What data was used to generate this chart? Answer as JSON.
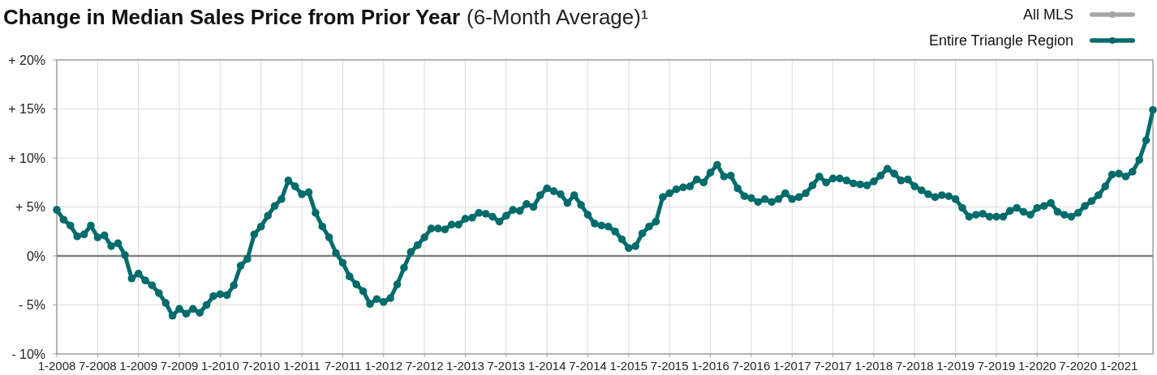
{
  "chart_data": {
    "type": "line",
    "title": "Change in Median Sales Price from Prior Year",
    "subtitle": "(6-Month Average)¹",
    "x": [
      "2008-01",
      "2008-02",
      "2008-03",
      "2008-04",
      "2008-05",
      "2008-06",
      "2008-07",
      "2008-08",
      "2008-09",
      "2008-10",
      "2008-11",
      "2008-12",
      "2009-01",
      "2009-02",
      "2009-03",
      "2009-04",
      "2009-05",
      "2009-06",
      "2009-07",
      "2009-08",
      "2009-09",
      "2009-10",
      "2009-11",
      "2009-12",
      "2010-01",
      "2010-02",
      "2010-03",
      "2010-04",
      "2010-05",
      "2010-06",
      "2010-07",
      "2010-08",
      "2010-09",
      "2010-10",
      "2010-11",
      "2010-12",
      "2011-01",
      "2011-02",
      "2011-03",
      "2011-04",
      "2011-05",
      "2011-06",
      "2011-07",
      "2011-08",
      "2011-09",
      "2011-10",
      "2011-11",
      "2011-12",
      "2012-01",
      "2012-02",
      "2012-03",
      "2012-04",
      "2012-05",
      "2012-06",
      "2012-07",
      "2012-08",
      "2012-09",
      "2012-10",
      "2012-11",
      "2012-12",
      "2013-01",
      "2013-02",
      "2013-03",
      "2013-04",
      "2013-05",
      "2013-06",
      "2013-07",
      "2013-08",
      "2013-09",
      "2013-10",
      "2013-11",
      "2013-12",
      "2014-01",
      "2014-02",
      "2014-03",
      "2014-04",
      "2014-05",
      "2014-06",
      "2014-07",
      "2014-08",
      "2014-09",
      "2014-10",
      "2014-11",
      "2014-12",
      "2015-01",
      "2015-02",
      "2015-03",
      "2015-04",
      "2015-05",
      "2015-06",
      "2015-07",
      "2015-08",
      "2015-09",
      "2015-10",
      "2015-11",
      "2015-12",
      "2016-01",
      "2016-02",
      "2016-03",
      "2016-04",
      "2016-05",
      "2016-06",
      "2016-07",
      "2016-08",
      "2016-09",
      "2016-10",
      "2016-11",
      "2016-12",
      "2017-01",
      "2017-02",
      "2017-03",
      "2017-04",
      "2017-05",
      "2017-06",
      "2017-07",
      "2017-08",
      "2017-09",
      "2017-10",
      "2017-11",
      "2017-12",
      "2018-01",
      "2018-02",
      "2018-03",
      "2018-04",
      "2018-05",
      "2018-06",
      "2018-07",
      "2018-08",
      "2018-09",
      "2018-10",
      "2018-11",
      "2018-12",
      "2019-01",
      "2019-02",
      "2019-03",
      "2019-04",
      "2019-05",
      "2019-06",
      "2019-07",
      "2019-08",
      "2019-09",
      "2019-10",
      "2019-11",
      "2019-12",
      "2020-01",
      "2020-02",
      "2020-03",
      "2020-04",
      "2020-05",
      "2020-06",
      "2020-07",
      "2020-08",
      "2020-09",
      "2020-10",
      "2020-11",
      "2020-12",
      "2021-01",
      "2021-02",
      "2021-03",
      "2021-04",
      "2021-05",
      "2021-06"
    ],
    "series": [
      {
        "name": "All MLS",
        "color": "#a6a6a6",
        "values": [
          null,
          null,
          null,
          null,
          null,
          null,
          null,
          null,
          null,
          null,
          null,
          null,
          null,
          null,
          null,
          null,
          null,
          null,
          null,
          null,
          null,
          null,
          null,
          null,
          null,
          null,
          null,
          null,
          null,
          null,
          null,
          null,
          null,
          null,
          null,
          null,
          null,
          null,
          null,
          null,
          null,
          null,
          null,
          null,
          null,
          null,
          null,
          null,
          null,
          null,
          null,
          null,
          null,
          null,
          null,
          null,
          null,
          null,
          null,
          null,
          null,
          null,
          null,
          null,
          null,
          null,
          null,
          null,
          null,
          null,
          null,
          null,
          null,
          null,
          null,
          null,
          null,
          null,
          null,
          null,
          null,
          null,
          null,
          null,
          null,
          null,
          null,
          null,
          null,
          null,
          null,
          null,
          null,
          null,
          null,
          null,
          null,
          null,
          null,
          null,
          null,
          null,
          null,
          null,
          null,
          null,
          null,
          null,
          null,
          null,
          null,
          null,
          null,
          null,
          null,
          null,
          null,
          null,
          null,
          null,
          null,
          null,
          null,
          null,
          null,
          null,
          null,
          null,
          null,
          null,
          null,
          null,
          null,
          null,
          null,
          null,
          null,
          null,
          null,
          null,
          null,
          null,
          null,
          null,
          null,
          null,
          null,
          null,
          null,
          null,
          null,
          null,
          null,
          null,
          null,
          null,
          null,
          null,
          null,
          null,
          null,
          null
        ]
      },
      {
        "name": "Entire Triangle Region",
        "color": "#006b6b",
        "values": [
          4.7,
          3.7,
          3.1,
          2.0,
          2.2,
          3.1,
          1.9,
          2.1,
          1.0,
          1.3,
          0.1,
          -2.3,
          -1.8,
          -2.5,
          -3.0,
          -3.8,
          -4.8,
          -6.1,
          -5.4,
          -5.9,
          -5.4,
          -5.8,
          -5.0,
          -4.1,
          -3.9,
          -4.0,
          -3.0,
          -1.0,
          -0.3,
          2.2,
          3.0,
          4.1,
          5.1,
          5.8,
          7.7,
          7.1,
          6.3,
          6.5,
          4.4,
          3.0,
          1.9,
          0.3,
          -0.7,
          -2.1,
          -2.9,
          -3.6,
          -4.9,
          -4.4,
          -4.7,
          -4.3,
          -2.9,
          -1.2,
          0.4,
          1.1,
          1.9,
          2.8,
          2.8,
          2.7,
          3.2,
          3.2,
          3.8,
          3.9,
          4.4,
          4.3,
          4.0,
          3.5,
          4.1,
          4.7,
          4.6,
          5.3,
          5.0,
          6.2,
          6.9,
          6.6,
          6.3,
          5.4,
          6.2,
          5.2,
          4.2,
          3.3,
          3.1,
          3.0,
          2.5,
          1.7,
          0.8,
          1.0,
          2.3,
          3.0,
          3.5,
          6.0,
          6.4,
          6.8,
          7.0,
          7.1,
          7.8,
          7.5,
          8.5,
          9.3,
          8.1,
          8.2,
          6.9,
          6.1,
          5.9,
          5.5,
          5.8,
          5.5,
          5.8,
          6.4,
          5.8,
          6.0,
          6.4,
          7.2,
          8.1,
          7.5,
          7.9,
          7.9,
          7.7,
          7.4,
          7.3,
          7.2,
          7.6,
          8.2,
          8.9,
          8.4,
          7.7,
          7.8,
          7.1,
          6.7,
          6.3,
          6.0,
          6.2,
          6.1,
          5.8,
          4.9,
          4.0,
          4.2,
          4.3,
          4.0,
          4.0,
          4.0,
          4.6,
          4.9,
          4.5,
          4.2,
          4.9,
          5.1,
          5.4,
          4.5,
          4.2,
          4.0,
          4.4,
          5.1,
          5.6,
          6.2,
          7.1,
          8.3,
          8.4,
          8.1,
          8.6,
          9.8,
          11.8,
          14.9
        ]
      }
    ],
    "xlim": [
      "2008-01",
      "2021-06"
    ],
    "xticks": [
      {
        "value": "2008-01",
        "label": "1-2008"
      },
      {
        "value": "2008-07",
        "label": "7-2008"
      },
      {
        "value": "2009-01",
        "label": "1-2009"
      },
      {
        "value": "2009-07",
        "label": "7-2009"
      },
      {
        "value": "2010-01",
        "label": "1-2010"
      },
      {
        "value": "2010-07",
        "label": "7-2010"
      },
      {
        "value": "2011-01",
        "label": "1-2011"
      },
      {
        "value": "2011-07",
        "label": "7-2011"
      },
      {
        "value": "2012-01",
        "label": "1-2012"
      },
      {
        "value": "2012-07",
        "label": "7-2012"
      },
      {
        "value": "2013-01",
        "label": "1-2013"
      },
      {
        "value": "2013-07",
        "label": "7-2013"
      },
      {
        "value": "2014-01",
        "label": "1-2014"
      },
      {
        "value": "2014-07",
        "label": "7-2014"
      },
      {
        "value": "2015-01",
        "label": "1-2015"
      },
      {
        "value": "2015-07",
        "label": "7-2015"
      },
      {
        "value": "2016-01",
        "label": "1-2016"
      },
      {
        "value": "2016-07",
        "label": "7-2016"
      },
      {
        "value": "2017-01",
        "label": "1-2017"
      },
      {
        "value": "2017-07",
        "label": "7-2017"
      },
      {
        "value": "2018-01",
        "label": "1-2018"
      },
      {
        "value": "2018-07",
        "label": "7-2018"
      },
      {
        "value": "2019-01",
        "label": "1-2019"
      },
      {
        "value": "2019-07",
        "label": "7-2019"
      },
      {
        "value": "2020-01",
        "label": "1-2020"
      },
      {
        "value": "2020-07",
        "label": "7-2020"
      },
      {
        "value": "2021-01",
        "label": "1-2021"
      }
    ],
    "ylim": [
      -10,
      20
    ],
    "yticks": [
      {
        "value": -10,
        "label": "- 10%"
      },
      {
        "value": -5,
        "label": "- 5%"
      },
      {
        "value": 0,
        "label": "0%"
      },
      {
        "value": 5,
        "label": "+ 5%"
      },
      {
        "value": 10,
        "label": "+ 10%"
      },
      {
        "value": 15,
        "label": "+ 15%"
      },
      {
        "value": 20,
        "label": "+ 20%"
      }
    ],
    "ref_lines": [
      {
        "axis": "y",
        "value": 0,
        "color": "#808080"
      }
    ],
    "grid": true,
    "legend": "top right",
    "marker": "circle",
    "line_style": "solid"
  }
}
